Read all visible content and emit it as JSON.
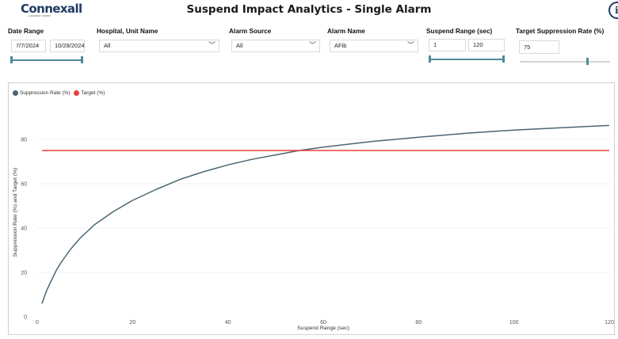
{
  "app": {
    "logo_text": "Connexall",
    "logo_subtext": "A GREATBAY COMPANY",
    "title": "Suspend Impact Analytics - Single Alarm",
    "info_icon": "info-icon",
    "info_glyph": "i"
  },
  "filters": {
    "date_range": {
      "label": "Date Range",
      "start": "7/7/2024",
      "end": "10/28/2024"
    },
    "hospital_unit": {
      "label": "Hospital, Unit Name",
      "value": "All"
    },
    "alarm_source": {
      "label": "Alarm Source",
      "value": "All"
    },
    "alarm_name": {
      "label": "Alarm Name",
      "value": "AFib"
    },
    "suspend_range": {
      "label": "Suspend Range (sec)",
      "min": "1",
      "max": "120"
    },
    "target_suppression": {
      "label": "Target Suppression Rate  (%)",
      "value": "75",
      "slider_level": 0.75
    }
  },
  "colors": {
    "suppression": "#4a6572",
    "target": "#e8403a",
    "accent": "#4e8a99",
    "brand": "#1f3b63"
  },
  "chart_data": {
    "type": "line",
    "xlabel": "Suspend Range (sec)",
    "ylabel": "Suppression Rate (%) and Target (%)",
    "xlim": [
      0,
      120
    ],
    "ylim": [
      0,
      90
    ],
    "x_ticks": [
      0,
      20,
      40,
      60,
      80,
      100,
      120
    ],
    "y_ticks": [
      0,
      20,
      40,
      60,
      80
    ],
    "grid": true,
    "legend_position": "top-left",
    "series": [
      {
        "name": "Suppression Rate (%)",
        "color": "#4a6572",
        "x": [
          1,
          2,
          3,
          4,
          5,
          6,
          7,
          8,
          9,
          10,
          12,
          14,
          16,
          18,
          20,
          25,
          30,
          35,
          40,
          45,
          50,
          55,
          60,
          70,
          80,
          90,
          100,
          110,
          120
        ],
        "y": [
          6,
          12,
          16.5,
          21,
          24.5,
          27.5,
          30.5,
          33,
          35.5,
          37.5,
          41.5,
          44.5,
          47.5,
          50,
          52.5,
          57.5,
          62,
          65.5,
          68.5,
          71,
          73,
          75,
          76.5,
          79,
          81,
          82.8,
          84.2,
          85.3,
          86.3
        ]
      },
      {
        "name": "Target (%)",
        "color": "#e8403a",
        "x": [
          1,
          120
        ],
        "y": [
          75,
          75
        ]
      }
    ]
  }
}
